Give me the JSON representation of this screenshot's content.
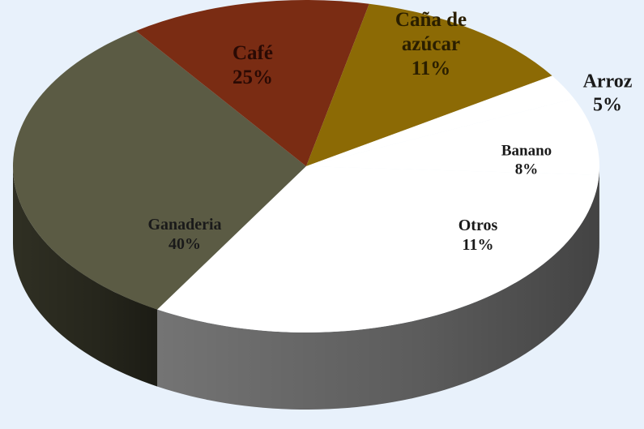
{
  "chart_data": {
    "type": "pie",
    "style": "3d",
    "slices": [
      {
        "category": "Ganaderia",
        "label_lines": [
          "Ganaderia"
        ],
        "value": 40,
        "value_label": "40%",
        "color": "#5b5b44",
        "label_color": "#1a1a1a"
      },
      {
        "category": "Café",
        "label_lines": [
          "Café"
        ],
        "value": 25,
        "value_label": "25%",
        "color": "#7a2c13",
        "label_color": "#2a0a04"
      },
      {
        "category": "Caña de azúcar",
        "label_lines": [
          "Caña de",
          "azúcar"
        ],
        "value": 11,
        "value_label": "11%",
        "color": "#8c6a05",
        "label_color": "#2a1e00"
      },
      {
        "category": "Arroz",
        "label_lines": [
          "Arroz"
        ],
        "value": 5,
        "value_label": "5%",
        "color": "#ffffff",
        "label_color": "#1a1a1a"
      },
      {
        "category": "Banano",
        "label_lines": [
          "Banano"
        ],
        "value": 8,
        "value_label": "8%",
        "color": "#ffffff",
        "label_color": "#1a1a1a"
      },
      {
        "category": "Otros",
        "label_lines": [
          "Otros"
        ],
        "value": 11,
        "value_label": "11%",
        "color": "#ffffff",
        "label_color": "#1a1a1a"
      }
    ],
    "background": "#e8f1fb",
    "side_color": "#7a7a7a"
  }
}
